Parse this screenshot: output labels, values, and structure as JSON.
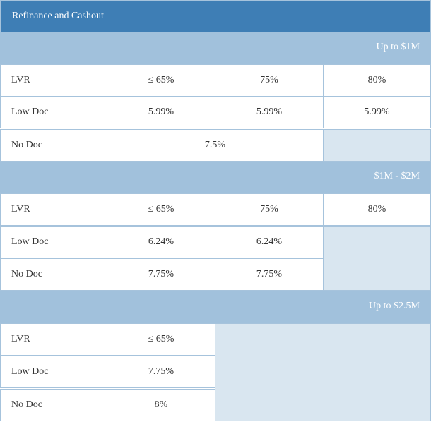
{
  "title": "Refinance and Cashout",
  "tiers": [
    {
      "heading": "Up to $1M",
      "rows": [
        {
          "label": "LVR",
          "values": [
            "≤ 65%",
            "75%",
            "80%"
          ]
        },
        {
          "label": "Low Doc",
          "values": [
            "5.99%",
            "5.99%",
            "5.99%"
          ]
        },
        {
          "label": "No Doc",
          "values": [
            "7.5%"
          ]
        }
      ]
    },
    {
      "heading": "$1M - $2M",
      "rows": [
        {
          "label": "LVR",
          "values": [
            "≤ 65%",
            "75%",
            "80%"
          ]
        },
        {
          "label": "Low Doc",
          "values": [
            "6.24%",
            "6.24%"
          ]
        },
        {
          "label": "No Doc",
          "values": [
            "7.75%",
            "7.75%"
          ]
        }
      ]
    },
    {
      "heading": "Up to $2.5M",
      "rows": [
        {
          "label": "LVR",
          "values": [
            "≤ 65%"
          ]
        },
        {
          "label": "Low Doc",
          "values": [
            "7.75%"
          ]
        },
        {
          "label": "No Doc",
          "values": [
            "8%"
          ]
        }
      ]
    }
  ],
  "colors": {
    "header_bg": "#3e7eb5",
    "band_bg": "#a1c1dc",
    "empty_bg": "#d9e6f0",
    "border": "#a6c3dc",
    "text": "#333333"
  }
}
